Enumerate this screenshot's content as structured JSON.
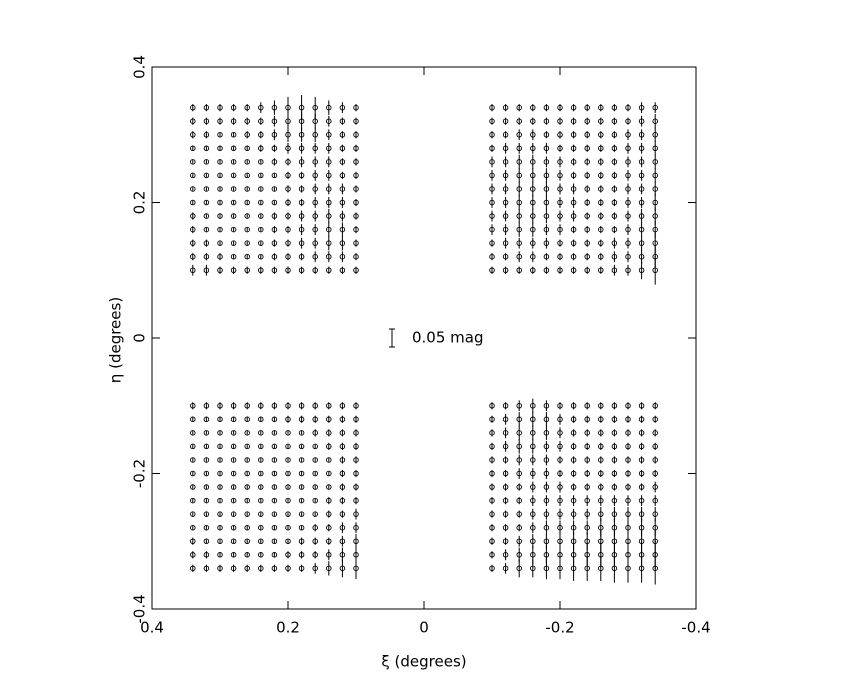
{
  "chart_data": {
    "type": "vector",
    "xlabel": "ξ (degrees)",
    "ylabel": "η (degrees)",
    "xlim": [
      0.4,
      -0.4
    ],
    "ylim": [
      -0.4,
      0.4
    ],
    "xticks": [
      0.4,
      0.2,
      0,
      -0.2,
      -0.4
    ],
    "yticks": [
      -0.4,
      -0.2,
      0,
      0.2,
      0.4
    ],
    "key": {
      "value": 0.05,
      "label": "0.05 mag"
    },
    "panels": [
      {
        "x": [
          0.34,
          0.32,
          0.3,
          0.28,
          0.26,
          0.24,
          0.22,
          0.2,
          0.18,
          0.16,
          0.14,
          0.12,
          0.1
        ],
        "y": [
          0.34,
          0.32,
          0.3,
          0.28,
          0.26,
          0.24,
          0.22,
          0.2,
          0.18,
          0.16,
          0.14,
          0.12,
          0.1
        ],
        "values": [
          [
            0.02,
            0.02,
            0.02,
            0.02,
            0.02,
            0.03,
            0.04,
            0.06,
            0.07,
            0.06,
            0.04,
            0.03,
            0.02
          ],
          [
            0.02,
            0.02,
            0.02,
            0.02,
            0.02,
            0.02,
            0.03,
            0.04,
            0.05,
            0.04,
            0.03,
            0.02,
            0.02
          ],
          [
            0.02,
            0.02,
            0.01,
            0.01,
            0.02,
            0.02,
            0.03,
            0.04,
            0.04,
            0.04,
            0.03,
            0.02,
            0.02
          ],
          [
            0.01,
            0.01,
            0.01,
            0.01,
            0.01,
            0.02,
            0.02,
            0.03,
            0.03,
            0.03,
            0.03,
            0.02,
            0.02
          ],
          [
            0.01,
            0.01,
            0.01,
            0.01,
            0.01,
            0.01,
            0.02,
            0.02,
            0.03,
            0.03,
            0.03,
            0.02,
            0.02
          ],
          [
            0.01,
            0.01,
            0.01,
            0.01,
            0.01,
            0.01,
            0.01,
            0.02,
            0.02,
            0.03,
            0.03,
            0.02,
            0.02
          ],
          [
            0.01,
            0.01,
            0.01,
            0.01,
            0.01,
            0.01,
            0.01,
            0.02,
            0.02,
            0.03,
            0.03,
            0.03,
            0.02
          ],
          [
            0.01,
            0.01,
            0.01,
            0.01,
            0.01,
            0.01,
            0.01,
            0.02,
            0.02,
            0.03,
            0.03,
            0.03,
            0.02
          ],
          [
            0.02,
            0.01,
            0.01,
            0.01,
            0.01,
            0.01,
            0.02,
            0.02,
            0.03,
            0.03,
            0.04,
            0.03,
            0.02
          ],
          [
            0.02,
            0.01,
            0.01,
            0.01,
            0.01,
            0.01,
            0.02,
            0.02,
            0.03,
            0.03,
            0.04,
            0.04,
            0.02
          ],
          [
            0.02,
            0.02,
            0.01,
            0.01,
            0.01,
            0.01,
            0.02,
            0.02,
            0.03,
            0.03,
            0.04,
            0.04,
            0.02
          ],
          [
            0.02,
            0.02,
            0.02,
            0.01,
            0.01,
            0.01,
            0.02,
            0.02,
            0.02,
            0.03,
            0.03,
            0.03,
            0.02
          ],
          [
            0.03,
            0.03,
            0.02,
            0.02,
            0.02,
            0.02,
            0.02,
            0.02,
            0.02,
            0.02,
            0.02,
            0.02,
            0.02
          ]
        ]
      },
      {
        "x": [
          -0.1,
          -0.12,
          -0.14,
          -0.16,
          -0.18,
          -0.2,
          -0.22,
          -0.24,
          -0.26,
          -0.28,
          -0.3,
          -0.32,
          -0.34
        ],
        "y": [
          0.34,
          0.32,
          0.3,
          0.28,
          0.26,
          0.24,
          0.22,
          0.2,
          0.18,
          0.16,
          0.14,
          0.12,
          0.1
        ],
        "values": [
          [
            0.02,
            0.02,
            0.02,
            0.02,
            0.02,
            0.02,
            0.02,
            0.02,
            0.02,
            0.02,
            0.02,
            0.03,
            0.03
          ],
          [
            0.02,
            0.02,
            0.02,
            0.02,
            0.02,
            0.02,
            0.02,
            0.02,
            0.02,
            0.02,
            0.02,
            0.03,
            0.04
          ],
          [
            0.02,
            0.02,
            0.03,
            0.03,
            0.02,
            0.02,
            0.02,
            0.02,
            0.02,
            0.02,
            0.03,
            0.03,
            0.04
          ],
          [
            0.02,
            0.03,
            0.03,
            0.03,
            0.03,
            0.02,
            0.02,
            0.02,
            0.02,
            0.02,
            0.03,
            0.03,
            0.04
          ],
          [
            0.03,
            0.03,
            0.04,
            0.04,
            0.03,
            0.03,
            0.02,
            0.02,
            0.02,
            0.02,
            0.03,
            0.03,
            0.04
          ],
          [
            0.03,
            0.03,
            0.04,
            0.04,
            0.04,
            0.03,
            0.02,
            0.02,
            0.02,
            0.02,
            0.03,
            0.03,
            0.04
          ],
          [
            0.03,
            0.03,
            0.04,
            0.04,
            0.04,
            0.03,
            0.03,
            0.02,
            0.02,
            0.02,
            0.03,
            0.03,
            0.04
          ],
          [
            0.03,
            0.03,
            0.04,
            0.04,
            0.04,
            0.03,
            0.03,
            0.02,
            0.02,
            0.02,
            0.03,
            0.03,
            0.05
          ],
          [
            0.03,
            0.03,
            0.04,
            0.04,
            0.04,
            0.03,
            0.03,
            0.02,
            0.02,
            0.02,
            0.03,
            0.04,
            0.05
          ],
          [
            0.03,
            0.03,
            0.04,
            0.04,
            0.03,
            0.03,
            0.02,
            0.02,
            0.02,
            0.02,
            0.03,
            0.04,
            0.05
          ],
          [
            0.02,
            0.03,
            0.03,
            0.03,
            0.03,
            0.02,
            0.02,
            0.02,
            0.02,
            0.03,
            0.03,
            0.04,
            0.06
          ],
          [
            0.02,
            0.02,
            0.03,
            0.03,
            0.02,
            0.02,
            0.02,
            0.02,
            0.02,
            0.03,
            0.03,
            0.04,
            0.06
          ],
          [
            0.02,
            0.02,
            0.02,
            0.02,
            0.02,
            0.02,
            0.02,
            0.02,
            0.02,
            0.03,
            0.03,
            0.05,
            0.08
          ]
        ]
      },
      {
        "x": [
          0.34,
          0.32,
          0.3,
          0.28,
          0.26,
          0.24,
          0.22,
          0.2,
          0.18,
          0.16,
          0.14,
          0.12,
          0.1
        ],
        "y": [
          -0.1,
          -0.12,
          -0.14,
          -0.16,
          -0.18,
          -0.2,
          -0.22,
          -0.24,
          -0.26,
          -0.28,
          -0.3,
          -0.32,
          -0.34
        ],
        "values": [
          [
            0.02,
            0.02,
            0.02,
            0.02,
            0.02,
            0.02,
            0.02,
            0.02,
            0.02,
            0.02,
            0.02,
            0.02,
            0.02
          ],
          [
            0.01,
            0.01,
            0.01,
            0.01,
            0.01,
            0.01,
            0.01,
            0.02,
            0.02,
            0.02,
            0.02,
            0.02,
            0.02
          ],
          [
            0.01,
            0.01,
            0.01,
            0.01,
            0.01,
            0.01,
            0.01,
            0.01,
            0.01,
            0.02,
            0.02,
            0.02,
            0.02
          ],
          [
            0.01,
            0.01,
            0.01,
            0.01,
            0.01,
            0.01,
            0.01,
            0.01,
            0.01,
            0.01,
            0.02,
            0.02,
            0.02
          ],
          [
            0.01,
            0.01,
            0.01,
            0.01,
            0.01,
            0.01,
            0.01,
            0.01,
            0.01,
            0.01,
            0.01,
            0.02,
            0.02
          ],
          [
            0.01,
            0.01,
            0.01,
            0.01,
            0.01,
            0.01,
            0.01,
            0.01,
            0.01,
            0.01,
            0.01,
            0.02,
            0.02
          ],
          [
            0.01,
            0.01,
            0.01,
            0.01,
            0.01,
            0.01,
            0.01,
            0.01,
            0.01,
            0.01,
            0.01,
            0.02,
            0.02
          ],
          [
            0.01,
            0.01,
            0.01,
            0.01,
            0.01,
            0.01,
            0.01,
            0.01,
            0.01,
            0.01,
            0.02,
            0.02,
            0.02
          ],
          [
            0.01,
            0.01,
            0.01,
            0.01,
            0.01,
            0.01,
            0.01,
            0.01,
            0.01,
            0.01,
            0.02,
            0.02,
            0.03
          ],
          [
            0.01,
            0.01,
            0.01,
            0.01,
            0.01,
            0.01,
            0.01,
            0.01,
            0.01,
            0.02,
            0.02,
            0.03,
            0.03
          ],
          [
            0.02,
            0.01,
            0.01,
            0.01,
            0.01,
            0.01,
            0.01,
            0.01,
            0.02,
            0.02,
            0.02,
            0.03,
            0.04
          ],
          [
            0.02,
            0.02,
            0.01,
            0.01,
            0.01,
            0.01,
            0.01,
            0.02,
            0.02,
            0.02,
            0.03,
            0.04,
            0.05
          ],
          [
            0.02,
            0.02,
            0.02,
            0.02,
            0.02,
            0.02,
            0.02,
            0.02,
            0.02,
            0.03,
            0.04,
            0.05,
            0.06
          ]
        ]
      },
      {
        "x": [
          -0.1,
          -0.12,
          -0.14,
          -0.16,
          -0.18,
          -0.2,
          -0.22,
          -0.24,
          -0.26,
          -0.28,
          -0.3,
          -0.32,
          -0.34
        ],
        "y": [
          -0.1,
          -0.12,
          -0.14,
          -0.16,
          -0.18,
          -0.2,
          -0.22,
          -0.24,
          -0.26,
          -0.28,
          -0.3,
          -0.32,
          -0.34
        ],
        "values": [
          [
            0.02,
            0.02,
            0.03,
            0.04,
            0.03,
            0.02,
            0.02,
            0.02,
            0.02,
            0.02,
            0.02,
            0.02,
            0.02
          ],
          [
            0.02,
            0.03,
            0.04,
            0.04,
            0.04,
            0.03,
            0.02,
            0.02,
            0.02,
            0.02,
            0.02,
            0.02,
            0.02
          ],
          [
            0.02,
            0.03,
            0.04,
            0.04,
            0.04,
            0.03,
            0.02,
            0.02,
            0.02,
            0.02,
            0.02,
            0.02,
            0.02
          ],
          [
            0.02,
            0.03,
            0.04,
            0.04,
            0.03,
            0.03,
            0.02,
            0.02,
            0.02,
            0.02,
            0.02,
            0.02,
            0.02
          ],
          [
            0.02,
            0.02,
            0.03,
            0.03,
            0.03,
            0.02,
            0.02,
            0.02,
            0.02,
            0.02,
            0.02,
            0.02,
            0.02
          ],
          [
            0.02,
            0.02,
            0.03,
            0.03,
            0.03,
            0.02,
            0.02,
            0.02,
            0.02,
            0.02,
            0.02,
            0.02,
            0.02
          ],
          [
            0.02,
            0.02,
            0.02,
            0.03,
            0.03,
            0.03,
            0.02,
            0.02,
            0.02,
            0.02,
            0.02,
            0.02,
            0.03
          ],
          [
            0.02,
            0.02,
            0.02,
            0.03,
            0.03,
            0.03,
            0.03,
            0.03,
            0.03,
            0.03,
            0.03,
            0.03,
            0.03
          ],
          [
            0.02,
            0.02,
            0.02,
            0.03,
            0.03,
            0.03,
            0.03,
            0.03,
            0.04,
            0.04,
            0.04,
            0.04,
            0.04
          ],
          [
            0.02,
            0.02,
            0.02,
            0.03,
            0.04,
            0.04,
            0.04,
            0.04,
            0.05,
            0.05,
            0.05,
            0.05,
            0.05
          ],
          [
            0.02,
            0.02,
            0.03,
            0.04,
            0.04,
            0.05,
            0.05,
            0.05,
            0.06,
            0.06,
            0.06,
            0.06,
            0.06
          ],
          [
            0.02,
            0.03,
            0.04,
            0.05,
            0.05,
            0.06,
            0.06,
            0.06,
            0.07,
            0.07,
            0.07,
            0.07,
            0.08
          ],
          [
            0.02,
            0.03,
            0.05,
            0.05,
            0.06,
            0.06,
            0.07,
            0.07,
            0.07,
            0.08,
            0.08,
            0.08,
            0.09
          ]
        ]
      }
    ]
  }
}
